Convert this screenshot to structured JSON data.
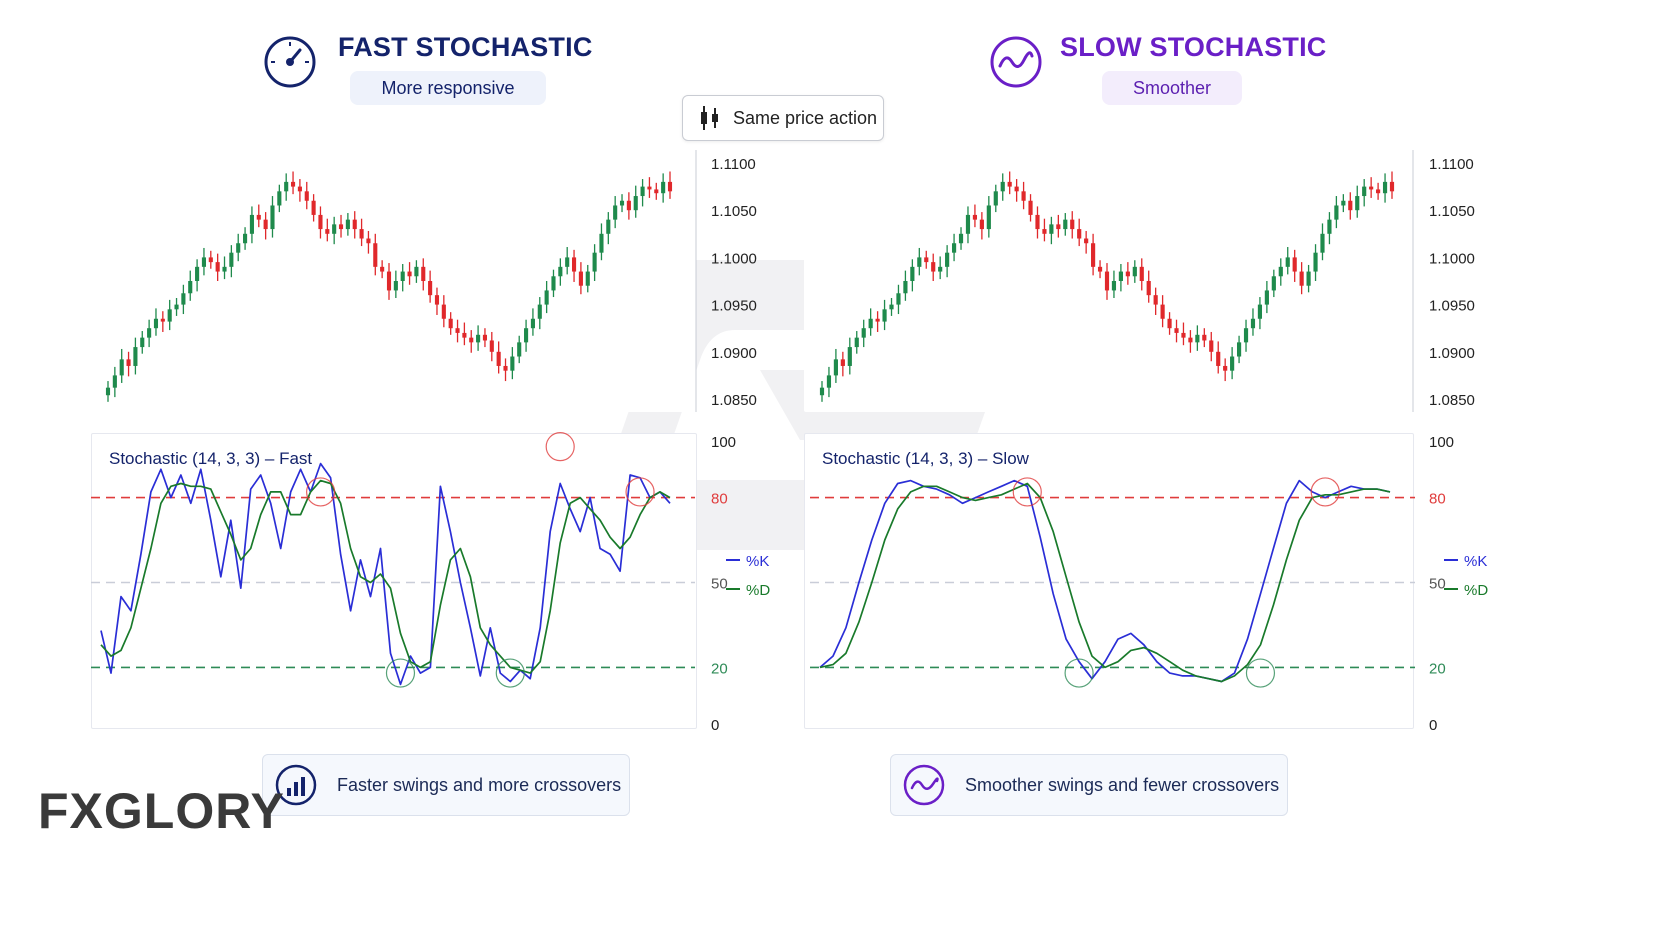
{
  "fast": {
    "title": "FAST STOCHASTIC",
    "subtitle": "More responsive",
    "indicator_label": "Stochastic (14, 3, 3) – Fast",
    "footer": "Faster swings and more crossovers"
  },
  "slow": {
    "title": "SLOW STOCHASTIC",
    "subtitle": "Smoother",
    "indicator_label": "Stochastic (14, 3, 3) – Slow",
    "footer": "Smoother swings and fewer crossovers"
  },
  "center_chip": "Same price action",
  "brand": "FXGLORY",
  "colors": {
    "fast_accent": "#14236b",
    "slow_accent": "#6a1fc7",
    "bull": "#1f8a4c",
    "bear": "#e0282b",
    "k_line": "#2a2ed6",
    "d_line": "#197a2b",
    "overbought": "#e03c3c",
    "oversold": "#2e8b57"
  },
  "chart_data": [
    {
      "type": "candlestick",
      "panel": "fast-price",
      "yticks": [
        "1.1100",
        "1.1050",
        "1.1000",
        "1.0950",
        "1.0900",
        "1.0850"
      ],
      "ylim": [
        1.0835,
        1.1105
      ],
      "closes": [
        1.0862,
        1.0875,
        1.0892,
        1.0885,
        1.0905,
        1.0915,
        1.0925,
        1.0935,
        1.0932,
        1.0945,
        1.095,
        1.0962,
        1.0975,
        1.099,
        1.1,
        1.0995,
        1.0985,
        1.099,
        1.1005,
        1.1015,
        1.1025,
        1.1045,
        1.104,
        1.103,
        1.1055,
        1.107,
        1.108,
        1.1075,
        1.107,
        1.106,
        1.1045,
        1.103,
        1.1025,
        1.1035,
        1.103,
        1.104,
        1.103,
        1.102,
        1.1015,
        1.099,
        1.0985,
        1.0965,
        1.0975,
        1.0985,
        1.098,
        1.099,
        1.0975,
        1.096,
        1.095,
        1.0935,
        1.0925,
        1.092,
        1.0915,
        1.091,
        1.0918,
        1.0912,
        1.09,
        1.0885,
        1.088,
        1.0895,
        1.091,
        1.0925,
        1.0935,
        1.095,
        1.0965,
        1.098,
        1.099,
        1.1,
        1.0985,
        1.097,
        1.0985,
        1.1005,
        1.1025,
        1.104,
        1.1055,
        1.106,
        1.105,
        1.1065,
        1.1075,
        1.1072,
        1.1068,
        1.108,
        1.107
      ],
      "ylabel": "",
      "xlabel": ""
    },
    {
      "type": "line",
      "panel": "fast-stochastic",
      "yticks": [
        100,
        80,
        50,
        20,
        0
      ],
      "ylim": [
        0,
        100
      ],
      "levels": {
        "overbought": 80,
        "mid": 50,
        "oversold": 20
      },
      "legend": [
        "%K",
        "%D"
      ],
      "series": [
        {
          "name": "%K",
          "values": [
            33,
            18,
            45,
            40,
            60,
            82,
            90,
            80,
            88,
            78,
            90,
            72,
            52,
            72,
            48,
            83,
            88,
            78,
            62,
            82,
            90,
            82,
            92,
            87,
            60,
            40,
            58,
            45,
            62,
            25,
            14,
            24,
            18,
            20,
            84,
            68,
            50,
            34,
            17,
            34,
            18,
            15,
            19,
            16,
            34,
            68,
            85,
            76,
            68,
            80,
            62,
            60,
            54,
            88,
            87,
            80,
            82,
            78
          ]
        },
        {
          "name": "%D",
          "values": [
            28,
            24,
            26,
            34,
            48,
            62,
            78,
            84,
            85,
            84,
            84,
            83,
            75,
            67,
            58,
            62,
            74,
            82,
            82,
            74,
            74,
            82,
            86,
            85,
            78,
            62,
            52,
            50,
            53,
            48,
            32,
            22,
            20,
            22,
            42,
            58,
            62,
            52,
            34,
            28,
            24,
            20,
            19,
            18,
            22,
            40,
            64,
            78,
            80,
            76,
            72,
            66,
            62,
            66,
            74,
            80,
            82,
            80
          ]
        }
      ],
      "ylabel": "",
      "xlabel": ""
    },
    {
      "type": "candlestick",
      "panel": "slow-price",
      "yticks": [
        "1.1100",
        "1.1050",
        "1.1000",
        "1.0950",
        "1.0900",
        "1.0850"
      ],
      "ylim": [
        1.0835,
        1.1105
      ],
      "closes": [
        1.0862,
        1.0875,
        1.0892,
        1.0885,
        1.0905,
        1.0915,
        1.0925,
        1.0935,
        1.0932,
        1.0945,
        1.095,
        1.0962,
        1.0975,
        1.099,
        1.1,
        1.0995,
        1.0985,
        1.099,
        1.1005,
        1.1015,
        1.1025,
        1.1045,
        1.104,
        1.103,
        1.1055,
        1.107,
        1.108,
        1.1075,
        1.107,
        1.106,
        1.1045,
        1.103,
        1.1025,
        1.1035,
        1.103,
        1.104,
        1.103,
        1.102,
        1.1015,
        1.099,
        1.0985,
        1.0965,
        1.0975,
        1.0985,
        1.098,
        1.099,
        1.0975,
        1.096,
        1.095,
        1.0935,
        1.0925,
        1.092,
        1.0915,
        1.091,
        1.0918,
        1.0912,
        1.09,
        1.0885,
        1.088,
        1.0895,
        1.091,
        1.0925,
        1.0935,
        1.095,
        1.0965,
        1.098,
        1.099,
        1.1,
        1.0985,
        1.097,
        1.0985,
        1.1005,
        1.1025,
        1.104,
        1.1055,
        1.106,
        1.105,
        1.1065,
        1.1075,
        1.1072,
        1.1068,
        1.108,
        1.107
      ],
      "ylabel": "",
      "xlabel": ""
    },
    {
      "type": "line",
      "panel": "slow-stochastic",
      "yticks": [
        100,
        80,
        50,
        20,
        0
      ],
      "ylim": [
        0,
        100
      ],
      "levels": {
        "overbought": 80,
        "mid": 50,
        "oversold": 20
      },
      "legend": [
        "%K",
        "%D"
      ],
      "series": [
        {
          "name": "%K",
          "values": [
            20,
            24,
            34,
            50,
            65,
            78,
            85,
            86,
            84,
            83,
            81,
            78,
            80,
            82,
            84,
            86,
            84,
            66,
            46,
            30,
            22,
            16,
            22,
            30,
            32,
            28,
            22,
            18,
            17,
            17,
            16,
            15,
            18,
            30,
            46,
            62,
            78,
            86,
            82,
            80,
            82,
            84,
            83,
            83,
            82
          ]
        },
        {
          "name": "%D",
          "values": [
            20,
            21,
            25,
            36,
            50,
            65,
            76,
            82,
            84,
            84,
            82,
            80,
            79,
            80,
            81,
            83,
            85,
            80,
            68,
            52,
            36,
            24,
            20,
            22,
            26,
            27,
            25,
            22,
            19,
            17,
            16,
            15,
            17,
            21,
            28,
            42,
            58,
            72,
            80,
            81,
            81,
            82,
            83,
            83,
            82
          ]
        }
      ],
      "ylabel": "",
      "xlabel": ""
    }
  ]
}
